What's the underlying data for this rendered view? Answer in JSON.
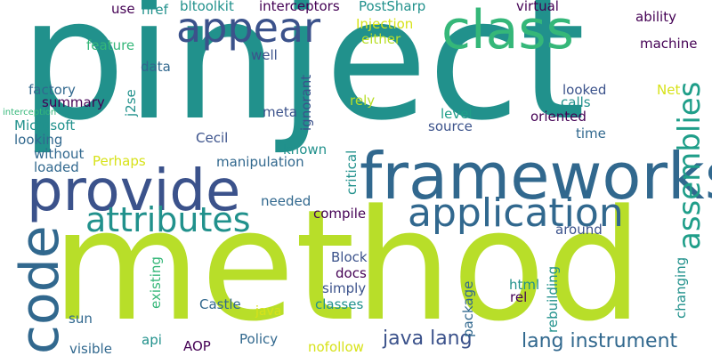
{
  "palette": {
    "darkpurple": "#440154",
    "indigo": "#3b528b",
    "blue": "#31688e",
    "teal": "#21918c",
    "green": "#35b779",
    "lime": "#b8de29",
    "yellow": "#d7e219",
    "seagreen": "#1f9e89"
  },
  "words": [
    {
      "id": "word-pinject",
      "text": "pinject"
    },
    {
      "id": "word-method",
      "text": "method"
    },
    {
      "id": "word-frameworks",
      "text": "frameworks"
    },
    {
      "id": "word-provide",
      "text": "provide"
    },
    {
      "id": "word-class",
      "text": "class"
    },
    {
      "id": "word-code",
      "text": "code"
    },
    {
      "id": "word-appear",
      "text": "appear"
    },
    {
      "id": "word-application",
      "text": "application"
    },
    {
      "id": "word-attributes",
      "text": "attributes"
    },
    {
      "id": "word-assemblies",
      "text": "assemblies"
    },
    {
      "id": "word-java-lang",
      "text": "java lang"
    },
    {
      "id": "word-lang-instrument",
      "text": "lang instrument"
    },
    {
      "id": "word-injection",
      "text": "Injection"
    },
    {
      "id": "word-postsharp",
      "text": "PostSharp"
    },
    {
      "id": "word-bltoolkit",
      "text": "bltoolkit"
    },
    {
      "id": "word-interceptors",
      "text": "interceptors"
    },
    {
      "id": "word-href",
      "text": "href"
    },
    {
      "id": "word-use",
      "text": "use"
    },
    {
      "id": "word-virtual",
      "text": "virtual"
    },
    {
      "id": "word-ability",
      "text": "ability"
    },
    {
      "id": "word-machine",
      "text": "machine"
    },
    {
      "id": "word-either",
      "text": "either"
    },
    {
      "id": "word-feature",
      "text": "feature"
    },
    {
      "id": "word-well",
      "text": "well"
    },
    {
      "id": "word-data",
      "text": "data"
    },
    {
      "id": "word-factory",
      "text": "factory"
    },
    {
      "id": "word-summary",
      "text": "summary"
    },
    {
      "id": "word-interception",
      "text": "interception"
    },
    {
      "id": "word-microsoft",
      "text": "Microsoft"
    },
    {
      "id": "word-looking",
      "text": "looking"
    },
    {
      "id": "word-without",
      "text": "without"
    },
    {
      "id": "word-loaded",
      "text": "loaded"
    },
    {
      "id": "word-j2se",
      "text": "j2se"
    },
    {
      "id": "word-meta",
      "text": "meta"
    },
    {
      "id": "word-ignorant",
      "text": "ignorant"
    },
    {
      "id": "word-rely",
      "text": "rely"
    },
    {
      "id": "word-looked",
      "text": "looked"
    },
    {
      "id": "word-net",
      "text": "Net"
    },
    {
      "id": "word-calls",
      "text": "calls"
    },
    {
      "id": "word-level",
      "text": "level"
    },
    {
      "id": "word-oriented",
      "text": "oriented"
    },
    {
      "id": "word-source",
      "text": "source"
    },
    {
      "id": "word-time",
      "text": "time"
    },
    {
      "id": "word-cecil",
      "text": "Cecil"
    },
    {
      "id": "word-known",
      "text": "known"
    },
    {
      "id": "word-critical",
      "text": "critical"
    },
    {
      "id": "word-perhaps",
      "text": "Perhaps"
    },
    {
      "id": "word-manipulation",
      "text": "manipulation"
    },
    {
      "id": "word-needed",
      "text": "needed"
    },
    {
      "id": "word-compile",
      "text": "compile"
    },
    {
      "id": "word-around",
      "text": "around"
    },
    {
      "id": "word-block",
      "text": "Block"
    },
    {
      "id": "word-docs",
      "text": "docs"
    },
    {
      "id": "word-simply",
      "text": "simply"
    },
    {
      "id": "word-existing",
      "text": "existing"
    },
    {
      "id": "word-html",
      "text": "html"
    },
    {
      "id": "word-rel",
      "text": "rel"
    },
    {
      "id": "word-rebuilding",
      "text": "rebuilding"
    },
    {
      "id": "word-changing",
      "text": "changing"
    },
    {
      "id": "word-package",
      "text": "package"
    },
    {
      "id": "word-castle",
      "text": "Castle"
    },
    {
      "id": "word-classes",
      "text": "classes"
    },
    {
      "id": "word-java",
      "text": "java"
    },
    {
      "id": "word-sun",
      "text": "sun"
    },
    {
      "id": "word-api",
      "text": "api"
    },
    {
      "id": "word-visible",
      "text": "visible"
    },
    {
      "id": "word-aop",
      "text": "AOP"
    },
    {
      "id": "word-policy",
      "text": "Policy"
    },
    {
      "id": "word-nofollow",
      "text": "nofollow"
    }
  ]
}
